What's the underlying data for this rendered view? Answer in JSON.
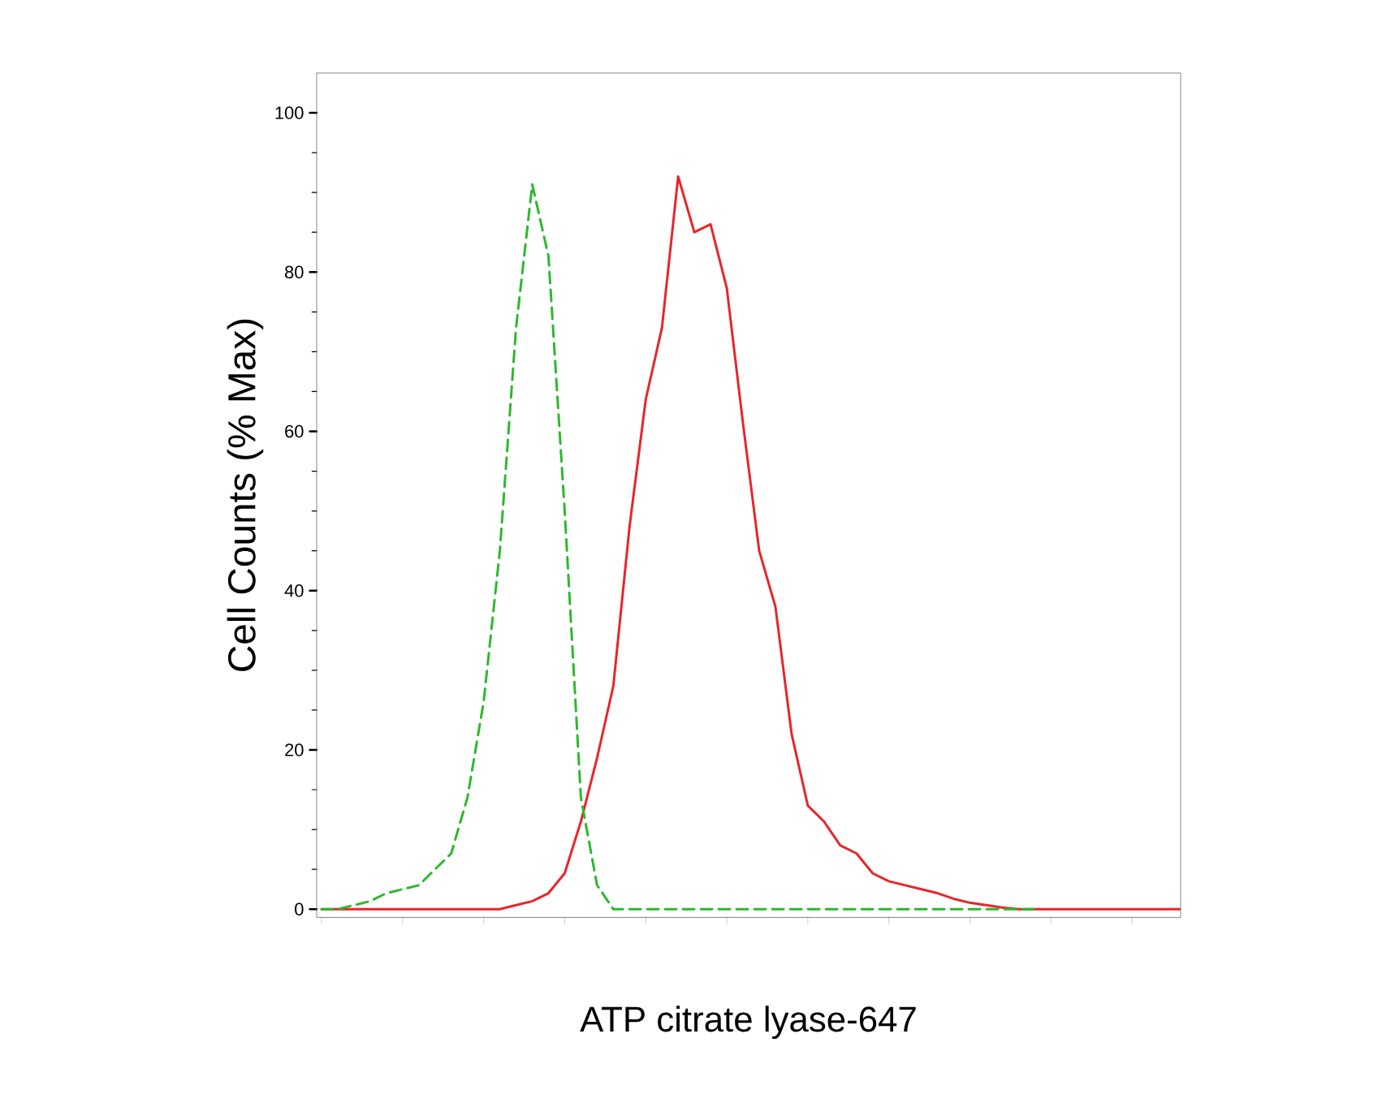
{
  "chart_data": {
    "type": "line",
    "xlabel": "ATP citrate lyase-647",
    "ylabel": "Cell Counts (% Max)",
    "categories": [
      null,
      null,
      null,
      null,
      null,
      null,
      null,
      null,
      null,
      null,
      null,
      null,
      null,
      null,
      null,
      null,
      null,
      null,
      null,
      null,
      null,
      null,
      null,
      null,
      null,
      null,
      null,
      null,
      null,
      null,
      null,
      null,
      null,
      null,
      null,
      null,
      null,
      null,
      null,
      null,
      null,
      null,
      null,
      null,
      null,
      null,
      null,
      null,
      null,
      null,
      null,
      null,
      null,
      null
    ],
    "ylim": [
      -1,
      105
    ],
    "yticks": [
      0,
      20,
      40,
      60,
      80,
      100
    ],
    "grid": false,
    "series": [
      {
        "color": "#2db82d",
        "line_style": "dashed",
        "values": [
          0,
          0,
          0.5,
          1,
          2,
          2.5,
          3,
          5,
          7,
          14,
          26,
          45,
          73,
          91,
          82,
          50,
          14,
          3,
          0,
          0,
          0,
          0,
          0,
          0,
          0,
          0,
          0,
          0,
          0,
          0,
          0,
          0,
          0,
          0,
          0,
          0,
          0,
          0,
          0,
          0,
          0,
          0,
          0,
          0,
          0,
          null,
          null,
          null,
          null,
          null,
          null,
          null,
          null,
          null
        ]
      },
      {
        "color": "#e8252a",
        "line_style": "solid",
        "values": [
          0,
          0,
          0,
          0,
          0,
          0,
          0,
          0,
          0,
          0,
          0,
          0,
          0.5,
          1,
          2,
          4.5,
          11,
          19,
          28,
          48,
          64,
          73,
          92,
          85,
          86,
          78,
          61,
          45,
          38,
          22,
          13,
          11,
          8,
          7,
          4.5,
          3.5,
          3,
          2.5,
          2,
          1.3,
          0.8,
          0.5,
          0.2,
          0,
          0,
          0,
          0,
          0,
          0,
          0,
          0,
          0,
          0,
          0
        ]
      }
    ]
  }
}
